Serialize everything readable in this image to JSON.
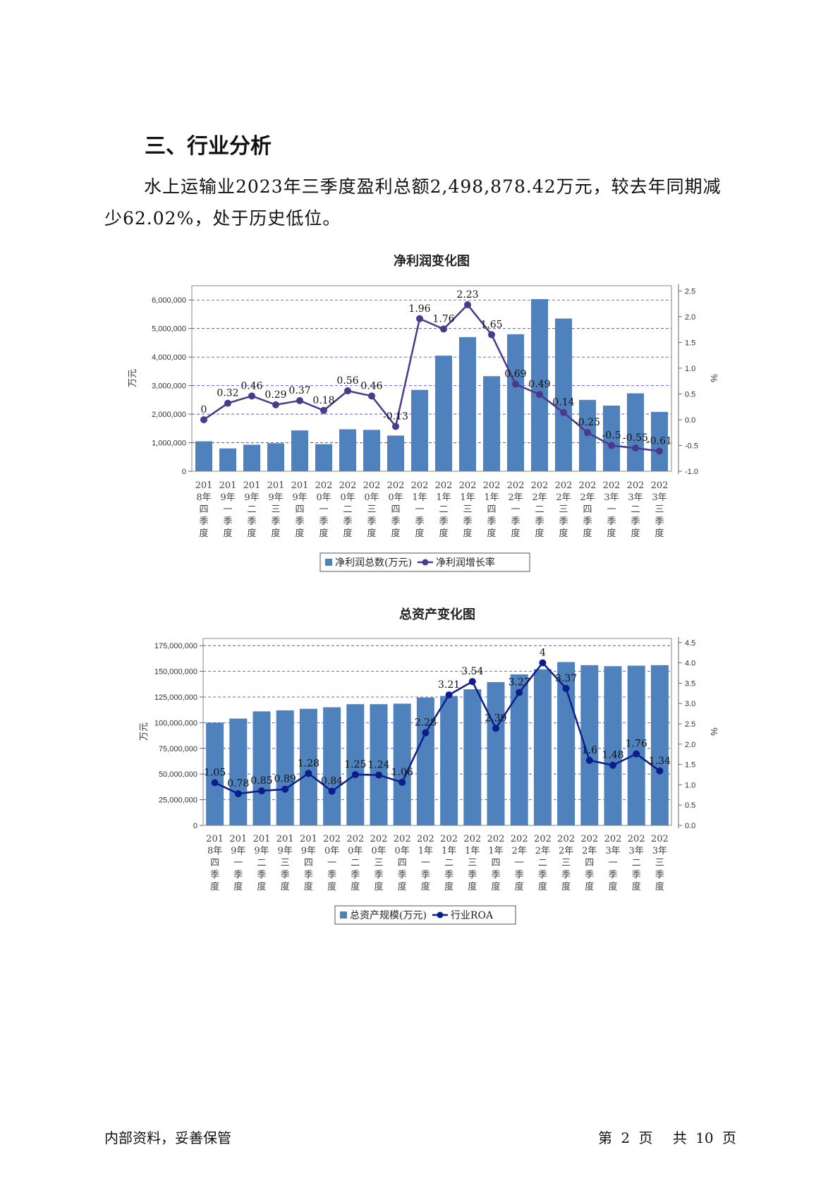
{
  "section": {
    "title": "三、行业分析",
    "paragraph": "水上运输业2023年三季度盈利总额2,498,878.42万元，较去年同期减少62.02%，处于历史低位。"
  },
  "charts": [
    {
      "id": "profit",
      "chart_data": {
        "type": "bar",
        "title": "净利润变化图",
        "categories": [
          [
            "201",
            "8年",
            "四",
            "季",
            "度"
          ],
          [
            "201",
            "9年",
            "一",
            "季",
            "度"
          ],
          [
            "201",
            "9年",
            "二",
            "季",
            "度"
          ],
          [
            "201",
            "9年",
            "三",
            "季",
            "度"
          ],
          [
            "201",
            "9年",
            "四",
            "季",
            "度"
          ],
          [
            "202",
            "0年",
            "一",
            "季",
            "度"
          ],
          [
            "202",
            "0年",
            "二",
            "季",
            "度"
          ],
          [
            "202",
            "0年",
            "三",
            "季",
            "度"
          ],
          [
            "202",
            "0年",
            "四",
            "季",
            "度"
          ],
          [
            "202",
            "1年",
            "一",
            "季",
            "度"
          ],
          [
            "202",
            "1年",
            "二",
            "季",
            "度"
          ],
          [
            "202",
            "1年",
            "三",
            "季",
            "度"
          ],
          [
            "202",
            "1年",
            "四",
            "季",
            "度"
          ],
          [
            "202",
            "2年",
            "一",
            "季",
            "度"
          ],
          [
            "202",
            "2年",
            "二",
            "季",
            "度"
          ],
          [
            "202",
            "2年",
            "三",
            "季",
            "度"
          ],
          [
            "202",
            "2年",
            "四",
            "季",
            "度"
          ],
          [
            "202",
            "3年",
            "一",
            "季",
            "度"
          ],
          [
            "202",
            "3年",
            "二",
            "季",
            "度"
          ],
          [
            "202",
            "3年",
            "三",
            "季",
            "度"
          ]
        ],
        "series": [
          {
            "name": "净利润总数(万元)",
            "axis": "left",
            "kind": "bar",
            "values": [
              1050000,
              800000,
              930000,
              980000,
              1430000,
              950000,
              1470000,
              1450000,
              1250000,
              2850000,
              4050000,
              4700000,
              3330000,
              4800000,
              6030000,
              5350000,
              2500000,
              2300000,
              2730000,
              2080000
            ]
          },
          {
            "name": "净利润增长率",
            "axis": "right",
            "kind": "line",
            "values": [
              0,
              0.32,
              0.46,
              0.29,
              0.37,
              0.18,
              0.56,
              0.46,
              -0.13,
              1.96,
              1.76,
              2.23,
              1.65,
              0.69,
              0.49,
              0.14,
              -0.25,
              -0.5,
              -0.55,
              -0.61
            ],
            "labels": [
              "0",
              "0.32",
              "0.46",
              "0.29",
              "0.37",
              "0.18",
              "0.56",
              "0.46",
              "-0.13",
              "1.96",
              "1.76",
              "2.23",
              "1.65",
              "0.69",
              "0.49",
              "0.14",
              "-0.25",
              "-0.5",
              "-0.55",
              "-0.61"
            ]
          }
        ],
        "ylabel": "万元",
        "y2label": "%",
        "ylim": [
          0,
          6500000
        ],
        "yticks": [
          0,
          1000000,
          2000000,
          3000000,
          4000000,
          5000000,
          6000000
        ],
        "ytick_labels": [
          "0",
          "1,000,000",
          "2,000,000",
          "3,000,000",
          "4,000,000",
          "5,000,000",
          "6,000,000"
        ],
        "y2lim": [
          -1.0,
          2.6
        ],
        "y2ticks": [
          -1.0,
          -0.5,
          0.0,
          0.5,
          1.0,
          1.5,
          2.0,
          2.5
        ],
        "y2tick_labels": [
          "-1.0",
          "-0.5",
          "0.0",
          "0.5",
          "1.0",
          "1.5",
          "2.0",
          "2.5"
        ],
        "grid": true,
        "legend": "bottom",
        "colors": {
          "bar": "#4f81bd",
          "line": "#4b3a8c"
        }
      }
    },
    {
      "id": "assets",
      "chart_data": {
        "type": "bar",
        "title": "总资产变化图",
        "categories": [
          [
            "201",
            "8年",
            "四",
            "季",
            "度"
          ],
          [
            "201",
            "9年",
            "一",
            "季",
            "度"
          ],
          [
            "201",
            "9年",
            "二",
            "季",
            "度"
          ],
          [
            "201",
            "9年",
            "三",
            "季",
            "度"
          ],
          [
            "201",
            "9年",
            "四",
            "季",
            "度"
          ],
          [
            "202",
            "0年",
            "一",
            "季",
            "度"
          ],
          [
            "202",
            "0年",
            "二",
            "季",
            "度"
          ],
          [
            "202",
            "0年",
            "三",
            "季",
            "度"
          ],
          [
            "202",
            "0年",
            "四",
            "季",
            "度"
          ],
          [
            "202",
            "1年",
            "一",
            "季",
            "度"
          ],
          [
            "202",
            "1年",
            "二",
            "季",
            "度"
          ],
          [
            "202",
            "1年",
            "三",
            "季",
            "度"
          ],
          [
            "202",
            "1年",
            "四",
            "季",
            "度"
          ],
          [
            "202",
            "2年",
            "一",
            "季",
            "度"
          ],
          [
            "202",
            "2年",
            "二",
            "季",
            "度"
          ],
          [
            "202",
            "2年",
            "三",
            "季",
            "度"
          ],
          [
            "202",
            "2年",
            "四",
            "季",
            "度"
          ],
          [
            "202",
            "3年",
            "一",
            "季",
            "度"
          ],
          [
            "202",
            "3年",
            "二",
            "季",
            "度"
          ],
          [
            "202",
            "3年",
            "三",
            "季",
            "度"
          ]
        ],
        "series": [
          {
            "name": "总资产规模(万元)",
            "axis": "left",
            "kind": "bar",
            "values": [
              100000000,
              104000000,
              111000000,
              112000000,
              113500000,
              115000000,
              118000000,
              118000000,
              118500000,
              124500000,
              126000000,
              132500000,
              139500000,
              147000000,
              152000000,
              159000000,
              156000000,
              155000000,
              155500000,
              156000000
            ]
          },
          {
            "name": "行业ROA",
            "axis": "right",
            "kind": "line",
            "values": [
              1.05,
              0.78,
              0.85,
              0.89,
              1.28,
              0.84,
              1.25,
              1.24,
              1.06,
              2.28,
              3.21,
              3.54,
              2.39,
              3.27,
              4,
              3.37,
              1.6,
              1.48,
              1.76,
              1.34
            ],
            "labels": [
              "1.05",
              "0.78",
              "0.85",
              "0.89",
              "1.28",
              "0.84",
              "1.25",
              "1.24",
              "1.06",
              "2.28",
              "3.21",
              "3.54",
              "2.39",
              "3.27",
              "4",
              "3.37",
              "1.6",
              "1.48",
              "1.76",
              "1.34"
            ]
          }
        ],
        "ylabel": "万元",
        "y2label": "%",
        "ylim": [
          0,
          182000000
        ],
        "yticks": [
          0,
          25000000,
          50000000,
          75000000,
          100000000,
          125000000,
          150000000,
          175000000
        ],
        "ytick_labels": [
          "0",
          "25,000,000",
          "50,000,000",
          "75,000,000",
          "100,000,000",
          "125,000,000",
          "150,000,000",
          "175,000,000"
        ],
        "y2lim": [
          0,
          4.6
        ],
        "y2ticks": [
          0,
          0.5,
          1.0,
          1.5,
          2.0,
          2.5,
          3.0,
          3.5,
          4.0,
          4.5
        ],
        "y2tick_labels": [
          "0.0",
          "0.5",
          "1.0",
          "1.5",
          "2.0",
          "2.5",
          "3.0",
          "3.5",
          "4.0",
          "4.5"
        ],
        "grid": true,
        "legend": "bottom",
        "colors": {
          "bar": "#4f81bd",
          "line": "#0b1f8c"
        }
      }
    }
  ],
  "footer": {
    "left": "内部资料，妥善保管",
    "page_prefix": "第",
    "page_num": "2",
    "page_unit": "页",
    "total_prefix": "共",
    "total_num": "10",
    "total_unit": "页"
  }
}
